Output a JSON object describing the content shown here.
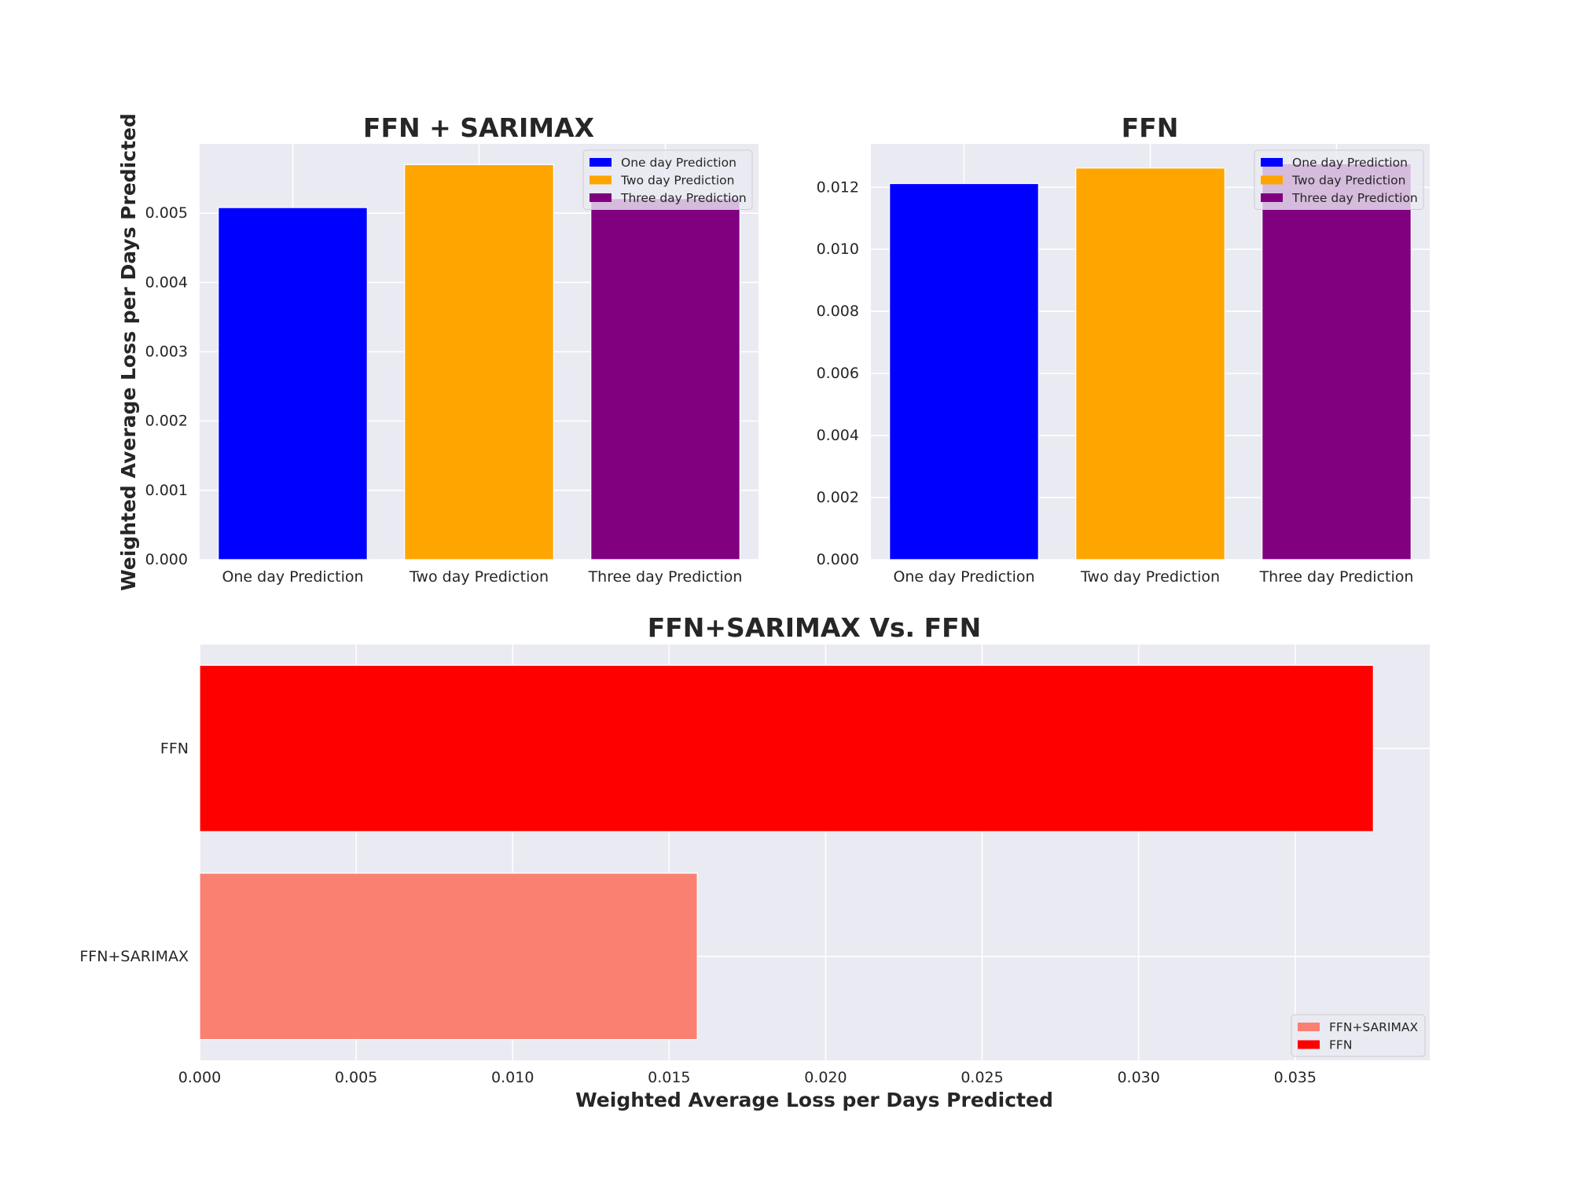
{
  "chart_data": [
    {
      "type": "bar",
      "title": "FFN + SARIMAX",
      "xlabel": "",
      "ylabel": "Weighted Average Loss per Days Predicted",
      "categories": [
        "One day Prediction",
        "Two day Prediction",
        "Three day Prediction"
      ],
      "values": [
        0.00508,
        0.0057,
        0.00521
      ],
      "colors": [
        "#0000ff",
        "#ffa500",
        "#800080"
      ],
      "ylim": [
        0,
        0.006
      ],
      "yticks": [
        0.0,
        0.001,
        0.002,
        0.003,
        0.004,
        0.005
      ],
      "ytick_labels": [
        "0.000",
        "0.001",
        "0.002",
        "0.003",
        "0.004",
        "0.005"
      ],
      "legend": [
        "One day Prediction",
        "Two day Prediction",
        "Three day Prediction"
      ],
      "legend_position": "top-right",
      "grid": true
    },
    {
      "type": "bar",
      "title": "FFN",
      "xlabel": "",
      "ylabel": "",
      "categories": [
        "One day Prediction",
        "Two day Prediction",
        "Three day Prediction"
      ],
      "values": [
        0.01212,
        0.01262,
        0.01276
      ],
      "colors": [
        "#0000ff",
        "#ffa500",
        "#800080"
      ],
      "ylim": [
        0,
        0.0134
      ],
      "yticks": [
        0.0,
        0.002,
        0.004,
        0.006,
        0.008,
        0.01,
        0.012
      ],
      "ytick_labels": [
        "0.000",
        "0.002",
        "0.004",
        "0.006",
        "0.008",
        "0.010",
        "0.012"
      ],
      "legend": [
        "One day Prediction",
        "Two day Prediction",
        "Three day Prediction"
      ],
      "legend_position": "top-right",
      "grid": true
    },
    {
      "type": "bar",
      "orientation": "horizontal",
      "title": "FFN+SARIMAX Vs. FFN",
      "xlabel": "Weighted Average Loss per Days Predicted",
      "ylabel": "",
      "categories": [
        "FFN+SARIMAX",
        "FFN"
      ],
      "values": [
        0.0159,
        0.0375
      ],
      "colors": [
        "#fa8072",
        "#ff0000"
      ],
      "xlim": [
        0,
        0.0393
      ],
      "xticks": [
        0.0,
        0.005,
        0.01,
        0.015,
        0.02,
        0.025,
        0.03,
        0.035
      ],
      "xtick_labels": [
        "0.000",
        "0.005",
        "0.010",
        "0.015",
        "0.020",
        "0.025",
        "0.030",
        "0.035"
      ],
      "legend": [
        "FFN+SARIMAX",
        "FFN"
      ],
      "legend_position": "bottom-right",
      "grid": true
    }
  ]
}
